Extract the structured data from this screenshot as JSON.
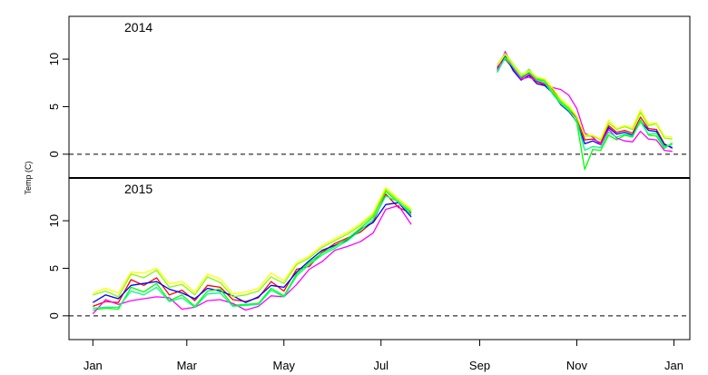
{
  "chart_data": {
    "type": "line",
    "ylabel": "Temp (C)",
    "x_ticks": [
      "Jan",
      "Mar",
      "May",
      "Jul",
      "Sep",
      "Nov",
      "Jan"
    ],
    "x_tick_days": [
      0,
      59,
      120,
      181,
      243,
      304,
      365
    ],
    "xlim_days": [
      -15,
      375
    ],
    "reference_line": 0,
    "series_colors": [
      "#ff0000",
      "#0000ff",
      "#00ff00",
      "#ff00ff",
      "#7fff00",
      "#00ff7f",
      "#ffff00"
    ],
    "panels": [
      {
        "label": "2014",
        "ylim": [
          -2.5,
          14.5
        ],
        "yticks": [
          0,
          5,
          10
        ],
        "series": [
          {
            "color": "#ff0000",
            "x": [
              254,
              259,
              264,
              269,
              274,
              279,
              284,
              289,
              294,
              299,
              304,
              309,
              314,
              319,
              324,
              329,
              334,
              339,
              344,
              349,
              354,
              359,
              364
            ],
            "y": [
              9.2,
              10.0,
              9.0,
              8.0,
              8.5,
              7.6,
              7.3,
              6.8,
              5.5,
              4.8,
              3.8,
              1.5,
              1.6,
              1.2,
              3.0,
              2.3,
              2.5,
              2.2,
              3.9,
              2.7,
              2.6,
              1.1,
              0.6
            ]
          },
          {
            "color": "#0000ff",
            "x": [
              254,
              259,
              264,
              269,
              274,
              279,
              284,
              289,
              294,
              299,
              304,
              309,
              314,
              319,
              324,
              329,
              334,
              339,
              344,
              349,
              354,
              359,
              364
            ],
            "y": [
              9.0,
              10.4,
              8.8,
              7.8,
              8.3,
              7.4,
              7.2,
              6.4,
              5.2,
              4.5,
              3.4,
              1.1,
              1.4,
              1.0,
              2.8,
              2.1,
              2.3,
              2.0,
              3.5,
              2.5,
              2.4,
              1.0,
              0.7
            ]
          },
          {
            "color": "#00ff00",
            "x": [
              254,
              259,
              264,
              269,
              274,
              279,
              284,
              289,
              294,
              299,
              304,
              309,
              314,
              319,
              324,
              329,
              334,
              339,
              344,
              349,
              354,
              359,
              364
            ],
            "y": [
              8.6,
              10.2,
              9.3,
              8.2,
              8.9,
              7.9,
              7.7,
              6.5,
              5.5,
              4.8,
              3.3,
              -1.6,
              0.5,
              0.4,
              2.0,
              1.5,
              2.0,
              1.8,
              3.6,
              2.0,
              1.9,
              0.6,
              1.2
            ]
          },
          {
            "color": "#ff00ff",
            "x": [
              254,
              259,
              264,
              269,
              274,
              279,
              284,
              289,
              294,
              299,
              304,
              309,
              314,
              319,
              324,
              329,
              334,
              339,
              344,
              349,
              354,
              359,
              364
            ],
            "y": [
              8.8,
              10.8,
              9.1,
              7.9,
              8.1,
              7.7,
              7.4,
              7.0,
              6.8,
              6.2,
              4.8,
              2.2,
              1.8,
              1.0,
              2.6,
              1.7,
              1.4,
              1.3,
              2.4,
              1.6,
              1.5,
              0.4,
              0.3
            ]
          },
          {
            "color": "#7fff00",
            "x": [
              254,
              259,
              264,
              269,
              274,
              279,
              284,
              289,
              294,
              299,
              304,
              309,
              314,
              319,
              324,
              329,
              334,
              339,
              344,
              349,
              354,
              359,
              364
            ],
            "y": [
              9.4,
              10.6,
              9.5,
              8.4,
              8.7,
              8.0,
              7.8,
              6.6,
              5.6,
              4.9,
              3.9,
              1.9,
              1.9,
              1.5,
              3.3,
              2.6,
              2.9,
              2.6,
              4.4,
              3.0,
              3.2,
              1.7,
              1.6
            ]
          },
          {
            "color": "#00ff7f",
            "x": [
              254,
              259,
              264,
              269,
              274,
              279,
              284,
              289,
              294,
              299,
              304,
              309,
              314,
              319,
              324,
              329,
              334,
              339,
              344,
              349,
              354,
              359,
              364
            ],
            "y": [
              8.7,
              10.1,
              9.2,
              8.1,
              8.6,
              7.8,
              7.5,
              6.3,
              5.3,
              4.6,
              3.5,
              0.4,
              0.8,
              0.7,
              2.3,
              1.8,
              2.1,
              1.9,
              3.4,
              2.1,
              2.2,
              0.8,
              1.0
            ]
          },
          {
            "color": "#ffff00",
            "x": [
              254,
              259,
              264,
              269,
              274,
              279,
              284,
              289,
              294,
              299,
              304,
              309,
              314,
              319,
              324,
              329,
              334,
              339,
              344,
              349,
              354,
              359,
              364
            ],
            "y": [
              9.3,
              10.5,
              9.4,
              8.3,
              8.8,
              8.1,
              7.9,
              6.9,
              5.8,
              5.1,
              4.0,
              2.0,
              2.0,
              1.6,
              3.6,
              2.7,
              3.0,
              2.8,
              4.7,
              3.2,
              3.3,
              1.9,
              1.8
            ]
          }
        ]
      },
      {
        "label": "2015",
        "ylim": [
          -2.5,
          14.5
        ],
        "yticks": [
          0,
          5,
          10
        ],
        "series": [
          {
            "color": "#ff0000",
            "x": [
              0,
              8,
              16,
              24,
              32,
              40,
              48,
              56,
              64,
              72,
              80,
              88,
              96,
              104,
              112,
              120,
              128,
              136,
              144,
              152,
              160,
              168,
              176,
              184,
              192,
              200
            ],
            "y": [
              1.0,
              1.5,
              1.4,
              3.8,
              3.2,
              4.0,
              2.2,
              2.7,
              1.6,
              3.2,
              3.0,
              1.7,
              1.5,
              1.9,
              3.6,
              2.6,
              4.9,
              5.2,
              6.7,
              7.6,
              8.2,
              8.8,
              9.9,
              12.8,
              11.4,
              10.8
            ]
          },
          {
            "color": "#0000ff",
            "x": [
              0,
              8,
              16,
              24,
              32,
              40,
              48,
              56,
              64,
              72,
              80,
              88,
              96,
              104,
              112,
              120,
              128,
              136,
              144,
              152,
              160,
              168,
              176,
              184,
              192,
              200
            ],
            "y": [
              1.4,
              2.2,
              1.8,
              3.2,
              3.4,
              3.6,
              2.8,
              2.4,
              1.8,
              2.9,
              2.6,
              2.1,
              1.4,
              2.0,
              3.2,
              3.0,
              4.6,
              5.8,
              6.9,
              7.4,
              8.0,
              9.1,
              9.8,
              11.7,
              11.9,
              10.4
            ]
          },
          {
            "color": "#00ff00",
            "x": [
              0,
              8,
              16,
              24,
              32,
              40,
              48,
              56,
              64,
              72,
              80,
              88,
              96,
              104,
              112,
              120,
              128,
              136,
              144,
              152,
              160,
              168,
              176,
              184,
              192,
              200
            ],
            "y": [
              0.6,
              0.8,
              0.7,
              3.0,
              2.5,
              3.4,
              1.6,
              2.2,
              1.0,
              2.6,
              2.8,
              1.1,
              1.2,
              1.3,
              2.9,
              2.1,
              4.4,
              5.6,
              6.6,
              7.3,
              8.1,
              9.2,
              10.4,
              13.1,
              11.9,
              10.9
            ]
          },
          {
            "color": "#ff00ff",
            "x": [
              0,
              8,
              16,
              24,
              32,
              40,
              48,
              56,
              64,
              72,
              80,
              88,
              96,
              104,
              112,
              120,
              128,
              136,
              144,
              152,
              160,
              168,
              176,
              184,
              192,
              200
            ],
            "y": [
              0.2,
              1.7,
              1.2,
              1.6,
              1.8,
              2.0,
              1.9,
              0.7,
              0.9,
              1.6,
              1.7,
              1.3,
              0.6,
              1.0,
              2.1,
              2.0,
              3.3,
              4.9,
              5.7,
              6.9,
              7.3,
              7.8,
              8.7,
              11.2,
              11.6,
              9.6
            ]
          },
          {
            "color": "#7fff00",
            "x": [
              0,
              8,
              16,
              24,
              32,
              40,
              48,
              56,
              64,
              72,
              80,
              88,
              96,
              104,
              112,
              120,
              128,
              136,
              144,
              152,
              160,
              168,
              176,
              184,
              192,
              200
            ],
            "y": [
              2.2,
              2.6,
              2.0,
              4.4,
              4.0,
              4.8,
              3.0,
              3.3,
              2.2,
              4.1,
              3.5,
              2.0,
              2.2,
              2.6,
              4.1,
              3.4,
              5.4,
              6.1,
              7.2,
              7.9,
              8.6,
              9.5,
              10.6,
              13.3,
              12.1,
              11.1
            ]
          },
          {
            "color": "#00ff7f",
            "x": [
              0,
              8,
              16,
              24,
              32,
              40,
              48,
              56,
              64,
              72,
              80,
              88,
              96,
              104,
              112,
              120,
              128,
              136,
              144,
              152,
              160,
              168,
              176,
              184,
              192,
              200
            ],
            "y": [
              0.8,
              0.9,
              0.9,
              2.6,
              2.2,
              3.0,
              1.5,
              1.9,
              0.9,
              2.3,
              2.4,
              1.0,
              1.1,
              1.2,
              2.7,
              2.0,
              4.2,
              5.4,
              6.4,
              7.1,
              7.9,
              9.0,
              10.1,
              12.6,
              12.0,
              10.6
            ]
          },
          {
            "color": "#ffff00",
            "x": [
              0,
              8,
              16,
              24,
              32,
              40,
              48,
              56,
              64,
              72,
              80,
              88,
              96,
              104,
              112,
              120,
              128,
              136,
              144,
              152,
              160,
              168,
              176,
              184,
              192,
              200
            ],
            "y": [
              2.4,
              2.9,
              2.4,
              4.6,
              4.5,
              5.0,
              3.4,
              3.6,
              2.5,
              4.4,
              3.9,
              2.3,
              2.5,
              2.9,
              4.5,
              3.7,
              5.6,
              6.3,
              7.4,
              8.1,
              8.8,
              9.7,
              10.8,
              13.5,
              12.3,
              11.3
            ]
          }
        ]
      }
    ]
  }
}
